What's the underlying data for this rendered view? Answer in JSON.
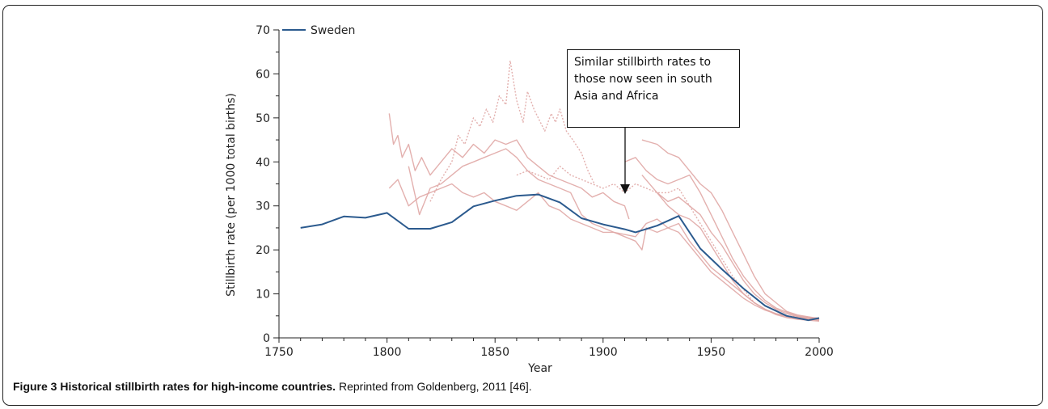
{
  "caption": {
    "figure_title": "Figure 3 Historical stillbirth rates for high-income countries.",
    "text": " Reprinted from Goldenberg, 2011 [46]."
  },
  "annotation": "Similar stillbirth rates to those now seen in south Asia and Africa",
  "colors": {
    "sweden": "#2b5a8e",
    "other": "#e0a7a5",
    "axis": "#222222"
  },
  "chart_data": {
    "type": "line",
    "title": "",
    "xlabel": "Year",
    "ylabel": "Stillbirth rate (per 1000 total births)",
    "xlim": [
      1750,
      2000
    ],
    "ylim": [
      0,
      70
    ],
    "xticks": [
      1750,
      1800,
      1850,
      1900,
      1950,
      2000
    ],
    "yticks": [
      0,
      10,
      20,
      30,
      40,
      50,
      60,
      70
    ],
    "legend": {
      "placement": "top-left",
      "entries": [
        "Sweden"
      ]
    },
    "series": [
      {
        "name": "Sweden",
        "highlight": true,
        "points": [
          [
            1760,
            25
          ],
          [
            1770,
            25.8
          ],
          [
            1780,
            27.6
          ],
          [
            1790,
            27.3
          ],
          [
            1800,
            28.4
          ],
          [
            1810,
            24.8
          ],
          [
            1820,
            24.8
          ],
          [
            1830,
            26.3
          ],
          [
            1840,
            29.9
          ],
          [
            1850,
            31.2
          ],
          [
            1860,
            32.3
          ],
          [
            1870,
            32.6
          ],
          [
            1880,
            30.8
          ],
          [
            1890,
            27.2
          ],
          [
            1900,
            25.8
          ],
          [
            1910,
            24.7
          ],
          [
            1915,
            24
          ],
          [
            1925,
            25.5
          ],
          [
            1935,
            27.7
          ],
          [
            1945,
            20.3
          ],
          [
            1955,
            15.6
          ],
          [
            1965,
            11.2
          ],
          [
            1975,
            7.3
          ],
          [
            1985,
            5
          ],
          [
            1995,
            4
          ],
          [
            2000,
            4.5
          ]
        ]
      },
      {
        "points": [
          [
            1801,
            51
          ],
          [
            1803,
            44
          ],
          [
            1805,
            46
          ],
          [
            1807,
            41
          ],
          [
            1810,
            44
          ],
          [
            1813,
            38
          ],
          [
            1816,
            41
          ],
          [
            1820,
            37
          ],
          [
            1825,
            40
          ],
          [
            1830,
            43
          ],
          [
            1835,
            41
          ],
          [
            1840,
            44
          ],
          [
            1845,
            42
          ],
          [
            1850,
            45
          ],
          [
            1855,
            44
          ],
          [
            1860,
            45
          ],
          [
            1865,
            41
          ],
          [
            1870,
            39
          ],
          [
            1875,
            37
          ],
          [
            1880,
            36
          ],
          [
            1885,
            35
          ],
          [
            1890,
            34
          ],
          [
            1895,
            32
          ],
          [
            1900,
            33
          ],
          [
            1905,
            31
          ],
          [
            1910,
            30
          ],
          [
            1912,
            27
          ]
        ]
      },
      {
        "points": [
          [
            1801,
            34
          ],
          [
            1805,
            36
          ],
          [
            1810,
            30
          ],
          [
            1815,
            32
          ],
          [
            1820,
            33
          ],
          [
            1825,
            34
          ],
          [
            1830,
            35
          ],
          [
            1835,
            33
          ],
          [
            1840,
            32
          ],
          [
            1845,
            33
          ],
          [
            1850,
            31
          ],
          [
            1855,
            30
          ],
          [
            1860,
            29
          ],
          [
            1865,
            31
          ],
          [
            1870,
            33
          ],
          [
            1875,
            30
          ],
          [
            1880,
            29
          ],
          [
            1885,
            27
          ],
          [
            1890,
            26
          ],
          [
            1895,
            25
          ],
          [
            1900,
            24
          ],
          [
            1905,
            24
          ],
          [
            1910,
            23
          ],
          [
            1915,
            22
          ],
          [
            1918,
            20
          ],
          [
            1920,
            25
          ],
          [
            1925,
            24
          ],
          [
            1930,
            25
          ],
          [
            1935,
            26
          ],
          [
            1940,
            22
          ],
          [
            1945,
            19
          ],
          [
            1950,
            16
          ],
          [
            1955,
            14
          ],
          [
            1960,
            12
          ],
          [
            1965,
            10
          ],
          [
            1970,
            8
          ],
          [
            1975,
            6.5
          ],
          [
            1980,
            5.5
          ],
          [
            1985,
            4.8
          ],
          [
            1990,
            4.5
          ],
          [
            1995,
            4.3
          ],
          [
            2000,
            4
          ]
        ]
      },
      {
        "points": [
          [
            1810,
            39
          ],
          [
            1815,
            28
          ],
          [
            1820,
            34
          ],
          [
            1825,
            35
          ],
          [
            1830,
            37
          ],
          [
            1835,
            39
          ],
          [
            1840,
            40
          ],
          [
            1845,
            41
          ],
          [
            1850,
            42
          ],
          [
            1855,
            43
          ],
          [
            1860,
            41
          ],
          [
            1865,
            38
          ],
          [
            1870,
            36
          ],
          [
            1875,
            35
          ],
          [
            1880,
            34
          ],
          [
            1885,
            33
          ],
          [
            1890,
            28
          ],
          [
            1895,
            26
          ],
          [
            1900,
            25
          ],
          [
            1905,
            24
          ],
          [
            1910,
            23.5
          ],
          [
            1915,
            23
          ],
          [
            1920,
            26
          ],
          [
            1925,
            27
          ],
          [
            1930,
            25
          ],
          [
            1935,
            24
          ],
          [
            1940,
            21
          ],
          [
            1945,
            18
          ],
          [
            1950,
            15
          ],
          [
            1955,
            13
          ],
          [
            1960,
            11
          ],
          [
            1965,
            9
          ],
          [
            1970,
            7.5
          ],
          [
            1975,
            6.3
          ],
          [
            1980,
            5.5
          ],
          [
            1985,
            5
          ],
          [
            1990,
            4.5
          ],
          [
            1995,
            4.5
          ],
          [
            2000,
            4.2
          ]
        ]
      },
      {
        "dashed": true,
        "points": [
          [
            1820,
            31
          ],
          [
            1825,
            36
          ],
          [
            1830,
            40
          ],
          [
            1833,
            46
          ],
          [
            1836,
            44
          ],
          [
            1840,
            50
          ],
          [
            1843,
            48
          ],
          [
            1846,
            52
          ],
          [
            1849,
            49
          ],
          [
            1852,
            55
          ],
          [
            1855,
            53
          ],
          [
            1857,
            63
          ],
          [
            1860,
            54
          ],
          [
            1863,
            49
          ],
          [
            1865,
            56
          ],
          [
            1868,
            52
          ],
          [
            1870,
            50
          ],
          [
            1873,
            47
          ],
          [
            1876,
            51
          ],
          [
            1878,
            49
          ],
          [
            1880,
            52
          ],
          [
            1883,
            47
          ],
          [
            1886,
            45
          ],
          [
            1890,
            42
          ],
          [
            1893,
            38
          ],
          [
            1896,
            35
          ]
        ]
      },
      {
        "dashed": true,
        "points": [
          [
            1860,
            37
          ],
          [
            1865,
            38
          ],
          [
            1870,
            37
          ],
          [
            1875,
            36
          ],
          [
            1880,
            39
          ],
          [
            1885,
            37
          ],
          [
            1890,
            36
          ],
          [
            1895,
            35
          ],
          [
            1900,
            34
          ],
          [
            1905,
            35
          ],
          [
            1910,
            33
          ],
          [
            1915,
            35
          ],
          [
            1920,
            34
          ],
          [
            1925,
            33
          ],
          [
            1930,
            33
          ],
          [
            1935,
            34
          ],
          [
            1940,
            30
          ],
          [
            1945,
            26
          ],
          [
            1950,
            22
          ],
          [
            1955,
            18
          ],
          [
            1960,
            14
          ],
          [
            1965,
            11
          ],
          [
            1970,
            8
          ],
          [
            1975,
            6.5
          ],
          [
            1980,
            5.5
          ],
          [
            1985,
            5
          ],
          [
            1990,
            4.8
          ],
          [
            1995,
            4.6
          ],
          [
            2000,
            4.5
          ]
        ]
      },
      {
        "points": [
          [
            1918,
            45
          ],
          [
            1925,
            44
          ],
          [
            1930,
            42
          ],
          [
            1935,
            41
          ],
          [
            1940,
            38
          ],
          [
            1945,
            35
          ],
          [
            1950,
            33
          ],
          [
            1955,
            29
          ],
          [
            1960,
            24
          ],
          [
            1965,
            19
          ],
          [
            1970,
            14
          ],
          [
            1975,
            10
          ],
          [
            1980,
            8
          ],
          [
            1985,
            6
          ],
          [
            1990,
            5.2
          ],
          [
            1995,
            4.8
          ],
          [
            2000,
            4.4
          ]
        ]
      },
      {
        "points": [
          [
            1910,
            40
          ],
          [
            1915,
            41
          ],
          [
            1920,
            38
          ],
          [
            1925,
            36
          ],
          [
            1930,
            35
          ],
          [
            1935,
            36
          ],
          [
            1940,
            37
          ],
          [
            1945,
            33
          ],
          [
            1950,
            28
          ],
          [
            1955,
            23
          ],
          [
            1960,
            18
          ],
          [
            1965,
            14
          ],
          [
            1970,
            11
          ],
          [
            1975,
            8.5
          ],
          [
            1980,
            6.8
          ],
          [
            1985,
            5.8
          ],
          [
            1990,
            5
          ],
          [
            1995,
            4.6
          ],
          [
            2000,
            4.5
          ]
        ]
      },
      {
        "points": [
          [
            1918,
            37
          ],
          [
            1925,
            33
          ],
          [
            1930,
            31
          ],
          [
            1935,
            32
          ],
          [
            1940,
            30
          ],
          [
            1945,
            28
          ],
          [
            1950,
            24
          ],
          [
            1955,
            21
          ],
          [
            1960,
            17
          ],
          [
            1965,
            13
          ],
          [
            1970,
            10
          ],
          [
            1975,
            8
          ],
          [
            1980,
            6.5
          ],
          [
            1985,
            5.5
          ],
          [
            1990,
            4.8
          ],
          [
            1995,
            4.4
          ],
          [
            2000,
            4
          ]
        ]
      },
      {
        "points": [
          [
            1925,
            33
          ],
          [
            1930,
            30
          ],
          [
            1935,
            28
          ],
          [
            1940,
            27
          ],
          [
            1945,
            25
          ],
          [
            1950,
            21
          ],
          [
            1955,
            17
          ],
          [
            1960,
            13
          ],
          [
            1965,
            10
          ],
          [
            1970,
            8
          ],
          [
            1975,
            6.5
          ],
          [
            1980,
            5.3
          ],
          [
            1985,
            4.6
          ],
          [
            1990,
            4.2
          ],
          [
            1995,
            4
          ],
          [
            2000,
            3.8
          ]
        ]
      }
    ]
  }
}
